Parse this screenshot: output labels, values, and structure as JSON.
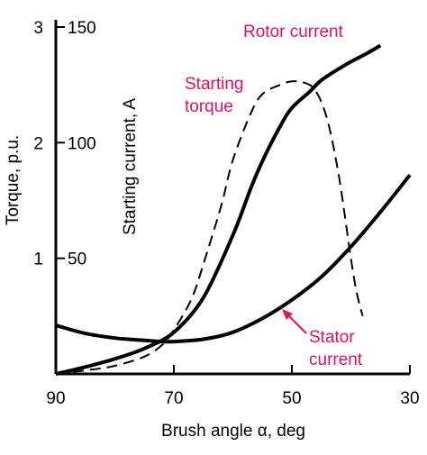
{
  "chart_data": {
    "type": "line",
    "xlabel": "Brush angle α, deg",
    "x_reversed": true,
    "xlim": [
      90,
      30
    ],
    "x_ticks": [
      "90",
      "70",
      "50",
      "30"
    ],
    "y_torque": {
      "label": "Torque, p.u.",
      "ticks": [
        "3",
        "2",
        "1"
      ],
      "ylim": [
        0,
        3
      ]
    },
    "y_current": {
      "label": "Starting current, A",
      "ticks": [
        "150",
        "100",
        "50"
      ],
      "ylim": [
        0,
        150
      ]
    },
    "series": [
      {
        "name": "Rotor current",
        "axis": "current",
        "style": "solid",
        "x": [
          90,
          85,
          80,
          75,
          70,
          65,
          60,
          57,
          55,
          52,
          50,
          47,
          45,
          42,
          40,
          37,
          35
        ],
        "y": [
          0,
          3,
          6.5,
          11,
          18,
          33,
          60,
          80,
          92,
          107,
          115,
          122,
          127,
          132,
          135,
          139,
          142
        ]
      },
      {
        "name": "Stator current",
        "axis": "current",
        "style": "solid",
        "x": [
          90,
          85,
          80,
          75,
          72,
          70,
          65,
          60,
          55,
          50,
          45,
          40,
          35,
          30
        ],
        "y": [
          21,
          17.5,
          15.5,
          14.5,
          14,
          14,
          15,
          18,
          24,
          32,
          42,
          55,
          70,
          86
        ]
      },
      {
        "name": "Starting torque",
        "axis": "torque",
        "style": "dashed",
        "x": [
          90,
          85,
          80,
          75,
          72,
          70,
          67,
          65,
          62,
          60,
          57,
          55,
          52,
          50,
          48,
          46,
          44,
          42,
          40,
          39,
          38
        ],
        "y": [
          0,
          0.03,
          0.07,
          0.15,
          0.25,
          0.38,
          0.65,
          0.95,
          1.45,
          1.85,
          2.25,
          2.42,
          2.5,
          2.53,
          2.52,
          2.45,
          2.2,
          1.7,
          1.0,
          0.7,
          0.5
        ]
      }
    ],
    "annotations": {
      "rotor_current": "Rotor current",
      "starting_torque_line1": "Starting",
      "starting_torque_line2": "torque",
      "stator_current_line1": "Stator",
      "stator_current_line2": "current"
    },
    "grid": false,
    "annotation_color": "#e0115f",
    "line_color": "#000000"
  }
}
